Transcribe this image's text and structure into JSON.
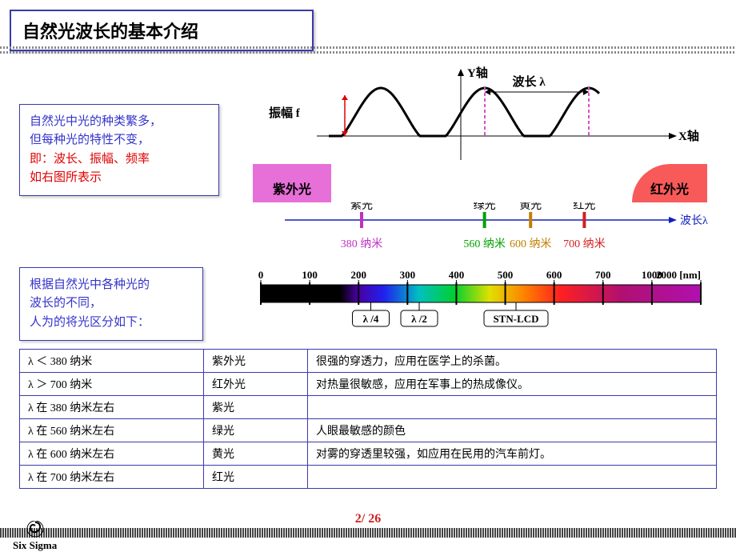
{
  "title": "自然光波长的基本介绍",
  "box1": {
    "l1": "自然光中光的种类繁多，",
    "l2": "但每种光的特性不变，",
    "l3": "即：波长、振幅、频率",
    "l4": "如右图所表示"
  },
  "box2": {
    "l1": "根据自然光中各种光的",
    "l2": "波长的不同，",
    "l3": "人为的将光区分如下："
  },
  "wave": {
    "y_label": "Y轴",
    "x_label": "X轴",
    "amp_label": "振幅 f",
    "wl_label": "波长 λ",
    "amp_color": "#e00000",
    "wl_marker_color": "#d84fca",
    "curve_color": "#000000"
  },
  "uv_block": "紫外光",
  "ir_block": "红外光",
  "uv_bg": "#e76fd8",
  "ir_bg": "#f85a5a",
  "spectrum_axis": {
    "axis_color": "#1020c0",
    "axis_label": "波长λ",
    "ticks": [
      {
        "pos": 0.2,
        "name": "紫光",
        "name_color": "#000000",
        "val": "380 纳米",
        "val_color": "#c030c0",
        "tick_color": "#c030c0"
      },
      {
        "pos": 0.52,
        "name": "绿光",
        "name_color": "#000000",
        "val": "560 纳米",
        "val_color": "#00a000",
        "tick_color": "#00a000"
      },
      {
        "pos": 0.64,
        "name": "黄光",
        "name_color": "#000000",
        "val": "600 纳米",
        "val_color": "#c08000",
        "tick_color": "#c08000"
      },
      {
        "pos": 0.78,
        "name": "红光",
        "name_color": "#000000",
        "val": "700 纳米",
        "val_color": "#d02020",
        "tick_color": "#d02020"
      }
    ]
  },
  "spectrum_bar": {
    "ticks": [
      "0",
      "100",
      "200",
      "300",
      "400",
      "500",
      "600",
      "700",
      "1000",
      "2000 [nm]"
    ],
    "tick_font": 13,
    "gradient_stops": [
      {
        "p": 0.0,
        "c": "#000000"
      },
      {
        "p": 0.18,
        "c": "#000000"
      },
      {
        "p": 0.22,
        "c": "#4a00a0"
      },
      {
        "p": 0.28,
        "c": "#2020f0"
      },
      {
        "p": 0.36,
        "c": "#00c0c0"
      },
      {
        "p": 0.44,
        "c": "#00d030"
      },
      {
        "p": 0.52,
        "c": "#e0e000"
      },
      {
        "p": 0.6,
        "c": "#ff8000"
      },
      {
        "p": 0.68,
        "c": "#ff2020"
      },
      {
        "p": 0.82,
        "c": "#b01070"
      },
      {
        "p": 1.0,
        "c": "#b010b0"
      }
    ],
    "callouts": [
      {
        "x": 0.25,
        "label": "λ /4"
      },
      {
        "x": 0.36,
        "label": "λ /2"
      },
      {
        "x": 0.58,
        "label": "STN-LCD"
      }
    ]
  },
  "table": [
    [
      "λ ＜ 380 纳米",
      "紫外光",
      "很强的穿透力，应用在医学上的杀菌。"
    ],
    [
      "λ ＞ 700 纳米",
      "红外光",
      "对热量很敏感，应用在军事上的热成像仪。"
    ],
    [
      "λ 在 380 纳米左右",
      "紫光",
      ""
    ],
    [
      "λ 在 560 纳米左右",
      "绿光",
      "人眼最敏感的颜色"
    ],
    [
      "λ 在 600 纳米左右",
      "黄光",
      "对雾的穿透里较强，如应用在民用的汽车前灯。"
    ],
    [
      "λ 在 700 纳米左右",
      "红光",
      ""
    ]
  ],
  "footer": {
    "logo_text": "Six Sigma",
    "pagenum": "2/ 26",
    "pagenum_color": "#d02020"
  }
}
